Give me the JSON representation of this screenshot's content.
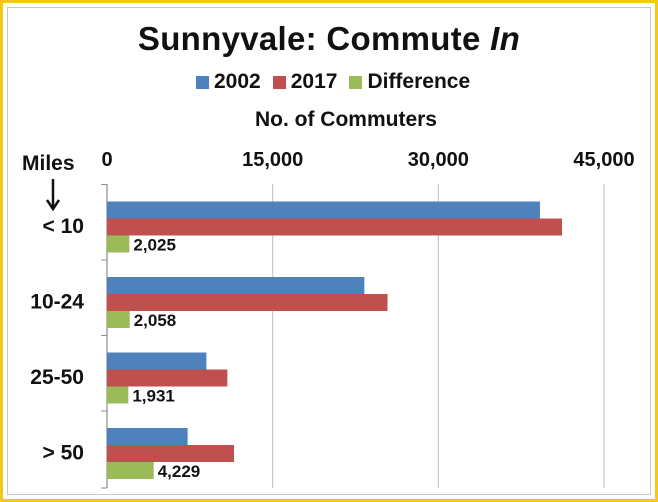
{
  "chart_data": {
    "type": "bar",
    "orientation": "horizontal",
    "title_main": "Sunnyvale: Commute ",
    "title_italic": "In",
    "xlabel": "No. of Commuters",
    "ylabel": "Miles",
    "xlim": [
      0,
      45000
    ],
    "ticks": [
      {
        "value": 0,
        "label": "0"
      },
      {
        "value": 15000,
        "label": "15,000"
      },
      {
        "value": 30000,
        "label": "30,000"
      },
      {
        "value": 45000,
        "label": "45,000"
      }
    ],
    "ticks_position": "top",
    "grid": true,
    "legend_position": "top",
    "categories": [
      "< 10",
      "10-24",
      "25-50",
      "> 50"
    ],
    "series": [
      {
        "name": "2002",
        "color": "#4f81bd",
        "values": [
          39200,
          23300,
          9000,
          7300
        ]
      },
      {
        "name": "2017",
        "color": "#c0504d",
        "values": [
          41200,
          25400,
          10900,
          11500
        ]
      },
      {
        "name": "Difference",
        "color": "#9bbb59",
        "values": [
          2025,
          2058,
          1931,
          4229
        ],
        "labels": [
          "2,025",
          "2,058",
          "1,931",
          "4,229"
        ]
      }
    ]
  }
}
